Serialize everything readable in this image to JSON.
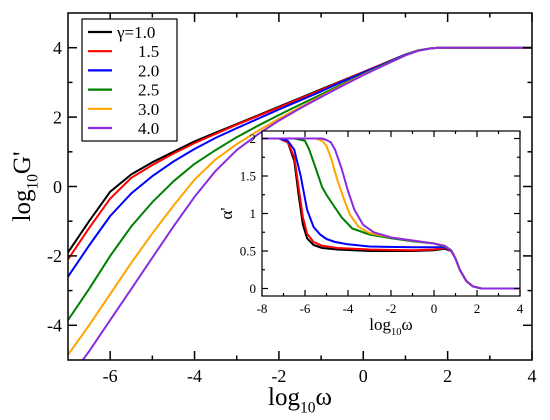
{
  "chart_data": [
    {
      "type": "line",
      "xlabel": "log₁₀ω",
      "ylabel": "log₁₀G'",
      "xlim": [
        -7,
        4
      ],
      "ylim": [
        -5,
        5
      ],
      "xticks": [
        -6,
        -4,
        -2,
        0,
        2,
        4
      ],
      "yticks": [
        -4,
        -2,
        0,
        2,
        4
      ],
      "grid": false,
      "legend_position": "top-left",
      "legend_title_prefix": "γ=",
      "series": [
        {
          "name": "1.0",
          "color": "#000000",
          "x": [
            -7,
            -6.5,
            -6,
            -5.5,
            -5,
            -4.5,
            -4,
            -3.5,
            -3,
            -2.5,
            -2,
            -1.5,
            -1,
            -0.5,
            0,
            0.5,
            1,
            1.3,
            1.6,
            1.8,
            2,
            2.3,
            2.6,
            3,
            4
          ],
          "y": [
            -1.9,
            -1.0,
            -0.15,
            0.35,
            0.7,
            1.0,
            1.3,
            1.55,
            1.8,
            2.05,
            2.3,
            2.55,
            2.8,
            3.05,
            3.3,
            3.55,
            3.8,
            3.92,
            3.98,
            4.0,
            4.0,
            4.0,
            4.0,
            4.0,
            4.0
          ]
        },
        {
          "name": "1.5",
          "color": "#ff0000",
          "x": [
            -7,
            -6.5,
            -6,
            -5.5,
            -5,
            -4.5,
            -4,
            -3.5,
            -3,
            -2.5,
            -2,
            -1.5,
            -1,
            -0.5,
            0,
            0.5,
            1,
            1.3,
            1.6,
            1.8,
            2,
            2.3,
            2.6,
            3,
            4
          ],
          "y": [
            -2.1,
            -1.2,
            -0.35,
            0.25,
            0.62,
            0.95,
            1.25,
            1.52,
            1.78,
            2.03,
            2.28,
            2.53,
            2.78,
            3.04,
            3.3,
            3.55,
            3.8,
            3.92,
            3.98,
            4.0,
            4.0,
            4.0,
            4.0,
            4.0,
            4.0
          ]
        },
        {
          "name": "2.0",
          "color": "#0000ff",
          "x": [
            -7,
            -6.5,
            -6,
            -5.5,
            -5,
            -4.5,
            -4,
            -3.5,
            -3,
            -2.5,
            -2,
            -1.5,
            -1,
            -0.5,
            0,
            0.5,
            1,
            1.3,
            1.6,
            1.8,
            2,
            2.3,
            2.6,
            3,
            4
          ],
          "y": [
            -2.6,
            -1.7,
            -0.85,
            -0.2,
            0.3,
            0.72,
            1.08,
            1.4,
            1.68,
            1.95,
            2.22,
            2.48,
            2.74,
            3.02,
            3.28,
            3.54,
            3.8,
            3.92,
            3.98,
            4.0,
            4.0,
            4.0,
            4.0,
            4.0,
            4.0
          ]
        },
        {
          "name": "2.5",
          "color": "#008000",
          "x": [
            -7,
            -6.5,
            -6,
            -5.5,
            -5,
            -4.5,
            -4,
            -3.5,
            -3,
            -2.5,
            -2,
            -1.5,
            -1,
            -0.5,
            0,
            0.5,
            1,
            1.3,
            1.6,
            1.8,
            2,
            2.3,
            2.6,
            3,
            4
          ],
          "y": [
            -3.85,
            -2.95,
            -2.0,
            -1.15,
            -0.45,
            0.15,
            0.65,
            1.05,
            1.42,
            1.75,
            2.06,
            2.36,
            2.65,
            2.95,
            3.24,
            3.52,
            3.79,
            3.92,
            3.98,
            4.0,
            4.0,
            4.0,
            4.0,
            4.0,
            4.0
          ]
        },
        {
          "name": "3.0",
          "color": "#ffa500",
          "x": [
            -7,
            -6.5,
            -6,
            -5.5,
            -5,
            -4.5,
            -4,
            -3.5,
            -3,
            -2.5,
            -2,
            -1.5,
            -1,
            -0.5,
            0,
            0.5,
            1,
            1.3,
            1.6,
            1.8,
            2,
            2.3,
            2.6,
            3,
            4
          ],
          "y": [
            -4.85,
            -4.0,
            -3.1,
            -2.2,
            -1.35,
            -0.55,
            0.2,
            0.78,
            1.22,
            1.6,
            1.95,
            2.28,
            2.6,
            2.92,
            3.22,
            3.5,
            3.78,
            3.91,
            3.98,
            4.0,
            4.0,
            4.0,
            4.0,
            4.0,
            4.0
          ]
        },
        {
          "name": "4.0",
          "color": "#8a2be2",
          "x": [
            -6.65,
            -6.5,
            -6,
            -5.5,
            -5,
            -4.5,
            -4,
            -3.5,
            -3,
            -2.5,
            -2,
            -1.5,
            -1,
            -0.5,
            0,
            0.5,
            1,
            1.3,
            1.6,
            1.8,
            2,
            2.3,
            2.6,
            3,
            4
          ],
          "y": [
            -5.0,
            -4.75,
            -3.85,
            -2.95,
            -2.05,
            -1.15,
            -0.3,
            0.45,
            1.05,
            1.5,
            1.9,
            2.25,
            2.58,
            2.9,
            3.21,
            3.5,
            3.78,
            3.91,
            3.98,
            4.0,
            4.0,
            4.0,
            4.0,
            4.0,
            4.0
          ]
        }
      ]
    },
    {
      "type": "line",
      "inset": true,
      "xlabel": "log₁₀ω",
      "ylabel": "α'",
      "xlim": [
        -8,
        4
      ],
      "ylim": [
        -0.1,
        2.1
      ],
      "xticks": [
        -8,
        -6,
        -4,
        -2,
        0,
        2,
        4
      ],
      "yticks": [
        0,
        0.5,
        1,
        1.5,
        2
      ],
      "grid": false,
      "series": [
        {
          "name": "1.0",
          "color": "#000000",
          "x": [
            -8,
            -7.2,
            -6.8,
            -6.5,
            -6.3,
            -6.1,
            -5.9,
            -5.6,
            -5.2,
            -4.5,
            -3,
            -1,
            0,
            0.5,
            0.8,
            1.0,
            1.2,
            1.5,
            1.8,
            2.2,
            3,
            4
          ],
          "y": [
            2,
            2,
            1.95,
            1.7,
            1.25,
            0.85,
            0.67,
            0.58,
            0.54,
            0.52,
            0.5,
            0.5,
            0.51,
            0.53,
            0.5,
            0.4,
            0.25,
            0.1,
            0.03,
            0.0,
            0.0,
            0.0
          ]
        },
        {
          "name": "1.5",
          "color": "#ff0000",
          "x": [
            -8,
            -7.2,
            -6.8,
            -6.5,
            -6.3,
            -6.1,
            -5.9,
            -5.6,
            -5.2,
            -4.5,
            -3,
            -1,
            0,
            0.5,
            0.8,
            1.0,
            1.2,
            1.5,
            1.8,
            2.2,
            3,
            4
          ],
          "y": [
            2,
            2,
            1.95,
            1.75,
            1.35,
            0.95,
            0.73,
            0.62,
            0.57,
            0.54,
            0.52,
            0.51,
            0.52,
            0.54,
            0.5,
            0.4,
            0.25,
            0.1,
            0.03,
            0.0,
            0.0,
            0.0
          ]
        },
        {
          "name": "2.0",
          "color": "#0000ff",
          "x": [
            -8,
            -7.2,
            -6.8,
            -6.5,
            -6.2,
            -5.9,
            -5.6,
            -5.3,
            -5.0,
            -4.6,
            -4.0,
            -3,
            -1,
            0,
            0.5,
            0.8,
            1.0,
            1.2,
            1.5,
            1.8,
            2.2,
            3,
            4
          ],
          "y": [
            2,
            2,
            1.97,
            1.85,
            1.5,
            1.05,
            0.82,
            0.72,
            0.66,
            0.62,
            0.59,
            0.56,
            0.55,
            0.55,
            0.55,
            0.51,
            0.4,
            0.25,
            0.1,
            0.03,
            0.0,
            0.0,
            0.0
          ]
        },
        {
          "name": "2.5",
          "color": "#008000",
          "x": [
            -8,
            -6.5,
            -6.0,
            -5.8,
            -5.5,
            -5.2,
            -5.0,
            -4.7,
            -4.3,
            -3.8,
            -3.0,
            -2.0,
            -1,
            0,
            0.5,
            0.8,
            1.0,
            1.2,
            1.5,
            1.8,
            2.2,
            3,
            4
          ],
          "y": [
            2,
            2,
            1.97,
            1.85,
            1.6,
            1.35,
            1.25,
            1.12,
            0.95,
            0.8,
            0.72,
            0.67,
            0.63,
            0.6,
            0.56,
            0.51,
            0.4,
            0.25,
            0.1,
            0.03,
            0.0,
            0.0,
            0.0
          ]
        },
        {
          "name": "3.0",
          "color": "#ffa500",
          "x": [
            -8,
            -5.5,
            -5.2,
            -5.0,
            -4.8,
            -4.5,
            -4.2,
            -3.9,
            -3.5,
            -3.0,
            -2.0,
            -1.0,
            0,
            0.5,
            0.8,
            1.0,
            1.2,
            1.5,
            1.8,
            2.2,
            3,
            4
          ],
          "y": [
            2,
            2,
            1.97,
            1.9,
            1.75,
            1.45,
            1.2,
            0.98,
            0.82,
            0.74,
            0.68,
            0.64,
            0.6,
            0.57,
            0.51,
            0.4,
            0.25,
            0.1,
            0.03,
            0.0,
            0.0,
            0.0
          ]
        },
        {
          "name": "4.0",
          "color": "#8a2be2",
          "x": [
            -8,
            -5.2,
            -5.0,
            -4.8,
            -4.6,
            -4.3,
            -4.0,
            -3.7,
            -3.3,
            -2.8,
            -2.0,
            -1.0,
            0,
            0.5,
            0.8,
            1.0,
            1.2,
            1.5,
            1.8,
            2.2,
            3,
            4
          ],
          "y": [
            2,
            2,
            1.98,
            1.95,
            1.85,
            1.6,
            1.3,
            1.05,
            0.85,
            0.75,
            0.68,
            0.64,
            0.6,
            0.57,
            0.51,
            0.4,
            0.25,
            0.1,
            0.03,
            0.0,
            0.0,
            0.0
          ]
        }
      ]
    }
  ]
}
